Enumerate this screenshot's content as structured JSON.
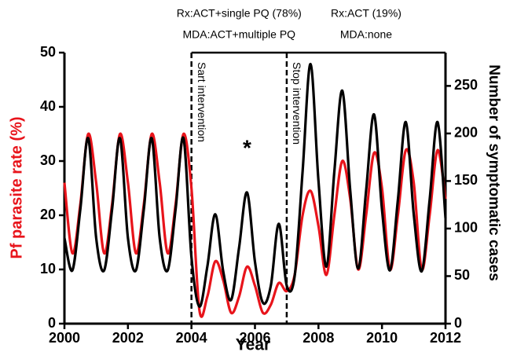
{
  "chart_data": {
    "type": "line",
    "xlabel": "Year",
    "ylabel": "Pf parasite rate (%)",
    "y2label": "Number of symptomatic cases",
    "x": [
      2000,
      2000.25,
      2000.5,
      2000.75,
      2001,
      2001.25,
      2001.5,
      2001.75,
      2002,
      2002.25,
      2002.5,
      2002.75,
      2003,
      2003.25,
      2003.5,
      2003.75,
      2004,
      2004.25,
      2004.5,
      2004.75,
      2005,
      2005.25,
      2005.5,
      2005.75,
      2006,
      2006.25,
      2006.5,
      2006.75,
      2007,
      2007.25,
      2007.5,
      2007.75,
      2008,
      2008.25,
      2008.5,
      2008.75,
      2009,
      2009.25,
      2009.5,
      2009.75,
      2010,
      2010.25,
      2010.5,
      2010.75,
      2011,
      2011.25,
      2011.5,
      2011.75,
      2012
    ],
    "series": [
      {
        "name": "Pf parasite rate (%)",
        "color": "#e8141b",
        "axis": "y",
        "values": [
          26,
          13,
          22,
          35,
          26,
          13,
          22,
          35,
          26,
          13,
          22,
          35,
          26,
          13,
          22,
          35,
          25,
          2.5,
          5,
          11.5,
          8,
          2,
          5,
          10.5,
          7,
          2,
          3.5,
          7.5,
          6,
          9,
          20,
          24.5,
          18,
          9,
          20,
          30,
          23,
          10,
          20,
          31.5,
          25,
          10,
          20,
          32,
          26,
          10,
          20,
          32,
          23
        ]
      },
      {
        "name": "Number of symptomatic cases",
        "color": "#000000",
        "axis": "y2",
        "values": [
          90,
          56,
          120,
          195,
          90,
          56,
          120,
          195,
          90,
          56,
          120,
          195,
          90,
          56,
          120,
          195,
          70,
          18,
          60,
          115,
          55,
          25,
          80,
          138,
          65,
          22,
          40,
          105,
          40,
          50,
          160,
          273,
          150,
          60,
          160,
          245,
          140,
          58,
          140,
          220,
          120,
          56,
          130,
          212,
          115,
          55,
          130,
          212,
          111
        ]
      }
    ],
    "xlim": [
      2000,
      2012
    ],
    "xticks": [
      2000,
      2002,
      2004,
      2006,
      2008,
      2010,
      2012
    ],
    "ylim": [
      0,
      50
    ],
    "yticks": [
      0,
      10,
      20,
      30,
      40,
      50
    ],
    "y2lim": [
      0,
      285
    ],
    "y2ticks": [
      0,
      50,
      100,
      150,
      200,
      250
    ],
    "interventions": [
      {
        "x": 2004,
        "label": "Sart intervention",
        "regimen": [
          "Rx:ACT+single PQ (78%)",
          "MDA:ACT+multiple PQ"
        ]
      },
      {
        "x": 2007,
        "label": "Stop intervention",
        "regimen": [
          "Rx:ACT (19%)",
          "MDA:none"
        ]
      }
    ],
    "marker": {
      "x": 2005.75,
      "text": "*"
    }
  }
}
